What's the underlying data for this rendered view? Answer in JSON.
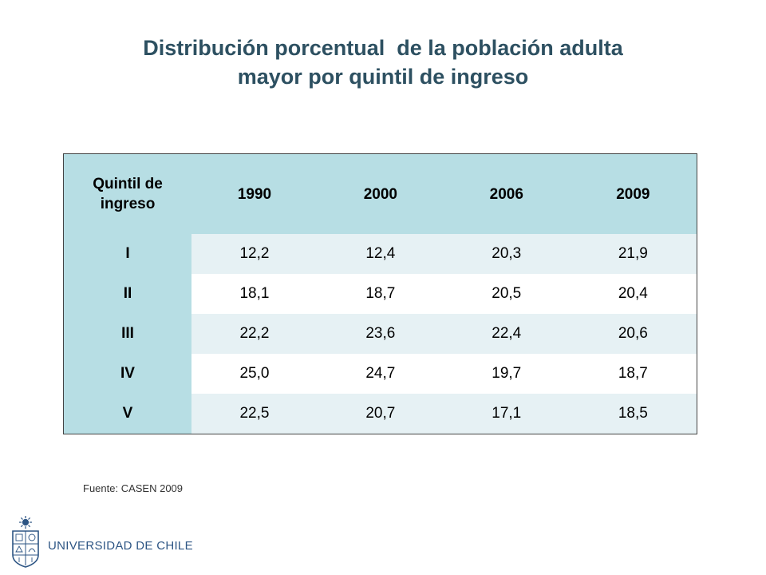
{
  "title": {
    "line1": "Distribución porcentual  de la población adulta",
    "line2": "mayor por quintil de ingreso"
  },
  "table": {
    "header": {
      "quintil_line1": "Quintil de",
      "quintil_line2": "ingreso",
      "years": [
        "1990",
        "2000",
        "2006",
        "2009"
      ]
    },
    "rows": [
      {
        "quintil": "I",
        "values": [
          "12,2",
          "12,4",
          "20,3",
          "21,9"
        ]
      },
      {
        "quintil": "II",
        "values": [
          "18,1",
          "18,7",
          "20,5",
          "20,4"
        ]
      },
      {
        "quintil": "III",
        "values": [
          "22,2",
          "23,6",
          "22,4",
          "20,6"
        ]
      },
      {
        "quintil": "IV",
        "values": [
          "25,0",
          "24,7",
          "19,7",
          "18,7"
        ]
      },
      {
        "quintil": "V",
        "values": [
          "22,5",
          "20,7",
          "17,1",
          "18,5"
        ]
      }
    ]
  },
  "source": "Fuente: CASEN 2009",
  "logo": {
    "text": "UNIVERSIDAD DE CHILE",
    "icon": "university-crest-icon",
    "color": "#2d5584"
  },
  "colors": {
    "title": "#2d5061",
    "header_bg": "#b7dee4",
    "row_alt_bg": "#e6f1f4"
  }
}
